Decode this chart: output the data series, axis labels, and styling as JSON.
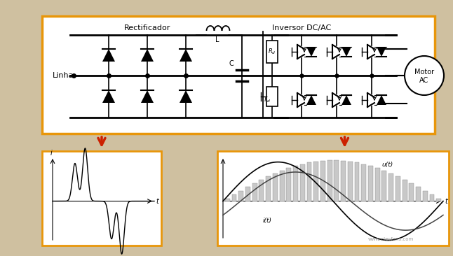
{
  "bg_color": "#cfc0a0",
  "box_color": "#e8960a",
  "arrow_color": "#cc2000",
  "rectificador_label": "Rectificador",
  "inversor_label": "Inversor DC/AC",
  "linha_label": "Linha",
  "motor_label": "Motor\nAC",
  "u_label": "u(t)",
  "i_label": "i(t)"
}
